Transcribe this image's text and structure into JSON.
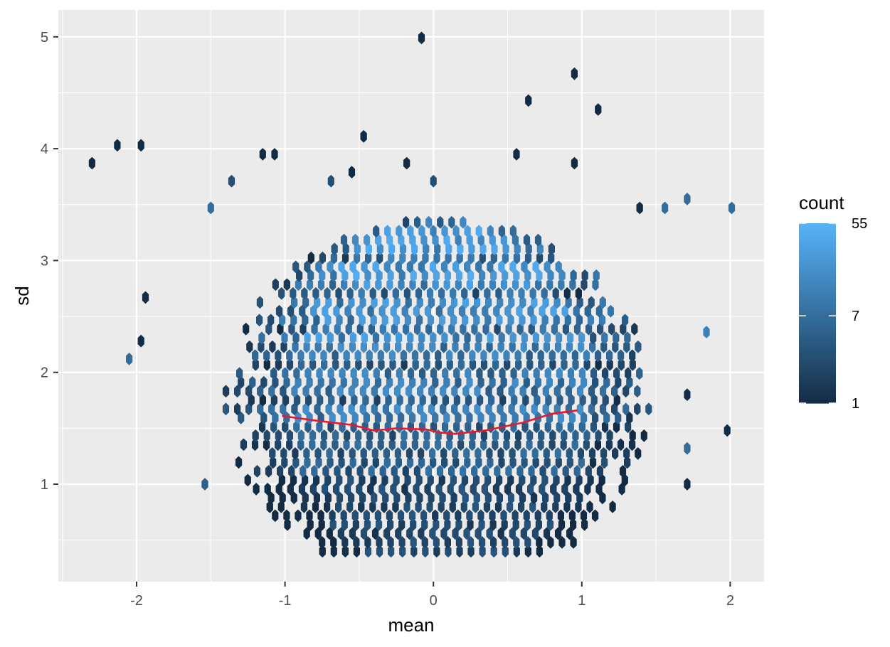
{
  "chart_data": {
    "type": "hexbin",
    "xlabel": "mean",
    "ylabel": "sd",
    "xlim": [
      -2.5,
      2.23
    ],
    "ylim": [
      0.2,
      5.3
    ],
    "x_ticks": [
      -2,
      -1,
      0,
      1,
      2
    ],
    "x_tick_labels": [
      "-2",
      "-1",
      "0",
      "1",
      "2"
    ],
    "y_ticks": [
      1,
      2,
      3,
      4,
      5
    ],
    "y_tick_labels": [
      "1",
      "2",
      "3",
      "4",
      "5"
    ],
    "grid": true,
    "legend": {
      "title": "count",
      "position": "right",
      "scale": "log",
      "breaks": [
        1,
        7,
        55
      ],
      "break_labels": [
        "1",
        "7",
        "55"
      ],
      "low_color": "#132B43",
      "high_color": "#56B1F7"
    },
    "outlier_points": [
      {
        "x": -0.08,
        "y": 4.99,
        "count": 1
      },
      {
        "x": 0.95,
        "y": 4.67,
        "count": 1
      },
      {
        "x": 0.64,
        "y": 4.43,
        "count": 1
      },
      {
        "x": 1.11,
        "y": 4.35,
        "count": 1
      },
      {
        "x": -0.47,
        "y": 4.11,
        "count": 1
      },
      {
        "x": -2.3,
        "y": 3.87,
        "count": 1
      },
      {
        "x": -2.13,
        "y": 4.03,
        "count": 1
      },
      {
        "x": -1.97,
        "y": 4.03,
        "count": 1
      },
      {
        "x": -1.15,
        "y": 3.95,
        "count": 1
      },
      {
        "x": -1.07,
        "y": 3.95,
        "count": 1
      },
      {
        "x": 0.56,
        "y": 3.95,
        "count": 1
      },
      {
        "x": -0.18,
        "y": 3.87,
        "count": 1
      },
      {
        "x": 0.95,
        "y": 3.87,
        "count": 1
      },
      {
        "x": -0.55,
        "y": 3.79,
        "count": 1
      },
      {
        "x": 0.0,
        "y": 3.71,
        "count": 3
      },
      {
        "x": -0.69,
        "y": 3.71,
        "count": 3
      },
      {
        "x": -1.36,
        "y": 3.71,
        "count": 3
      },
      {
        "x": 1.71,
        "y": 3.55,
        "count": 7
      },
      {
        "x": 2.01,
        "y": 3.47,
        "count": 7
      },
      {
        "x": 1.39,
        "y": 3.47,
        "count": 1
      },
      {
        "x": 1.56,
        "y": 3.47,
        "count": 7
      },
      {
        "x": -1.5,
        "y": 3.47,
        "count": 7
      },
      {
        "x": -1.94,
        "y": 2.67,
        "count": 1
      },
      {
        "x": -1.97,
        "y": 2.28,
        "count": 1
      },
      {
        "x": -2.05,
        "y": 2.12,
        "count": 7
      },
      {
        "x": 1.84,
        "y": 2.36,
        "count": 13
      },
      {
        "x": 1.98,
        "y": 1.48,
        "count": 1
      },
      {
        "x": 1.71,
        "y": 1.0,
        "count": 1
      },
      {
        "x": 1.71,
        "y": 1.32,
        "count": 7
      },
      {
        "x": 1.71,
        "y": 1.8,
        "count": 1
      },
      {
        "x": -1.54,
        "y": 1.0,
        "count": 5
      }
    ],
    "dense_region": {
      "x_range": [
        -1.35,
        1.45
      ],
      "y_range": [
        0.4,
        3.4
      ],
      "description_free": true
    },
    "trend_line": {
      "color": "#E8192C",
      "points": [
        {
          "x": -1.02,
          "y": 1.61
        },
        {
          "x": -0.8,
          "y": 1.57
        },
        {
          "x": -0.55,
          "y": 1.53
        },
        {
          "x": -0.4,
          "y": 1.48
        },
        {
          "x": -0.25,
          "y": 1.5
        },
        {
          "x": -0.05,
          "y": 1.49
        },
        {
          "x": 0.05,
          "y": 1.46
        },
        {
          "x": 0.15,
          "y": 1.45
        },
        {
          "x": 0.35,
          "y": 1.48
        },
        {
          "x": 0.6,
          "y": 1.55
        },
        {
          "x": 0.8,
          "y": 1.63
        },
        {
          "x": 0.97,
          "y": 1.66
        }
      ]
    }
  }
}
